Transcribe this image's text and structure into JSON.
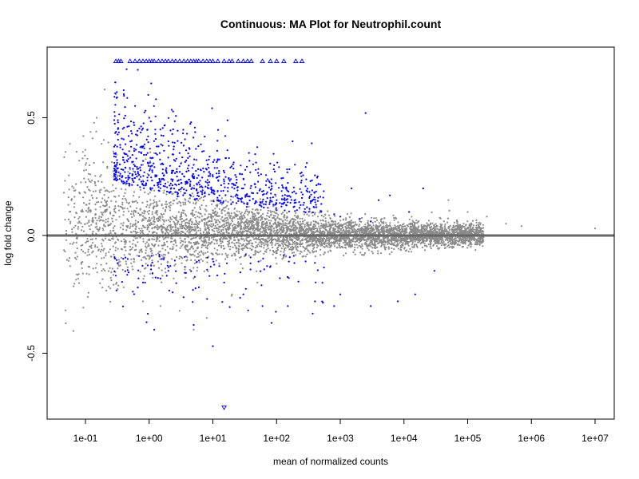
{
  "chart_data": {
    "type": "scatter",
    "title": "Continuous: MA Plot for Neutrophil.count",
    "xlabel": "mean of normalized counts",
    "ylabel": "log fold change",
    "x_scale": "log10",
    "x_ticks": [
      0.1,
      1,
      10,
      100,
      1000,
      10000,
      100000,
      1000000,
      10000000
    ],
    "x_tick_labels": [
      "1e-01",
      "1e+00",
      "1e+01",
      "1e+02",
      "1e+03",
      "1e+04",
      "1e+05",
      "1e+06",
      "1e+07"
    ],
    "y_ticks": [
      -0.5,
      0.0,
      0.5
    ],
    "y_tick_labels": [
      "-0.5",
      "0.0",
      "0.5"
    ],
    "xlim": [
      0.025,
      20000000
    ],
    "ylim": [
      -0.78,
      0.8
    ],
    "clip_ylim": [
      -0.73,
      0.73
    ],
    "reference_line": {
      "y": 0,
      "color": "#666666"
    },
    "grid": false,
    "legend": "none",
    "series": [
      {
        "color": "#8a8a8a",
        "marker": "point",
        "description_points": [
          [
            0.05,
            0.02
          ],
          [
            0.08,
            0.06
          ],
          [
            0.12,
            0.1
          ],
          [
            0.2,
            0.15
          ],
          [
            0.3,
            0.2
          ],
          [
            0.5,
            0.28
          ],
          [
            0.8,
            0.3
          ],
          [
            1.2,
            0.35
          ],
          [
            0.15,
            -0.12
          ],
          [
            0.25,
            -0.18
          ],
          [
            0.4,
            -0.22
          ],
          [
            0.8,
            -0.28
          ],
          [
            1.5,
            -0.3
          ],
          [
            3,
            -0.32
          ],
          [
            5,
            -0.4
          ],
          [
            8,
            -0.35
          ],
          [
            20,
            -0.25
          ],
          [
            50,
            -0.2
          ],
          [
            100,
            -0.12
          ],
          [
            300,
            -0.08
          ],
          [
            1000,
            -0.05
          ],
          [
            5000,
            -0.04
          ],
          [
            20000,
            -0.03
          ],
          [
            100000,
            -0.01
          ],
          [
            300000,
            0.0
          ],
          [
            1000000,
            0.0
          ],
          [
            2000000,
            0.0
          ],
          [
            10000000,
            0.03
          ],
          [
            0.06,
            0.15
          ],
          [
            0.1,
            0.3
          ],
          [
            0.12,
            0.44
          ],
          [
            0.2,
            0.62
          ],
          [
            0.3,
            0.6
          ],
          [
            0.15,
            0.5
          ],
          [
            0.05,
            -0.02
          ],
          [
            20000,
            0.2
          ],
          [
            50000,
            0.15
          ],
          [
            100000,
            0.1
          ],
          [
            200000,
            0.08
          ],
          [
            400000,
            0.05
          ],
          [
            700000,
            0.04
          ]
        ]
      },
      {
        "color": "#0000ff",
        "marker": "point",
        "description_points": [
          [
            0.4,
            0.6
          ],
          [
            0.6,
            0.55
          ],
          [
            1,
            0.5
          ],
          [
            1.5,
            0.45
          ],
          [
            2,
            0.4
          ],
          [
            3,
            0.35
          ],
          [
            5,
            0.3
          ],
          [
            8,
            0.28
          ],
          [
            10,
            0.25
          ],
          [
            15,
            0.23
          ],
          [
            20,
            0.22
          ],
          [
            30,
            0.2
          ],
          [
            50,
            0.18
          ],
          [
            80,
            0.16
          ],
          [
            100,
            0.15
          ],
          [
            200,
            0.14
          ],
          [
            300,
            0.12
          ],
          [
            500,
            0.1
          ],
          [
            800,
            0.09
          ],
          [
            1000,
            0.08
          ],
          [
            2000,
            0.07
          ],
          [
            3000,
            0.06
          ],
          [
            2500,
            0.52
          ],
          [
            1500,
            0.2
          ],
          [
            4000,
            0.15
          ],
          [
            6000,
            0.17
          ],
          [
            20000,
            0.2
          ],
          [
            12000,
            0.1
          ],
          [
            15,
            -0.2
          ],
          [
            30,
            -0.25
          ],
          [
            60,
            -0.3
          ],
          [
            150,
            -0.3
          ],
          [
            400,
            -0.28
          ],
          [
            800,
            -0.3
          ],
          [
            1000,
            -0.25
          ],
          [
            3000,
            -0.3
          ],
          [
            8000,
            -0.28
          ],
          [
            15000,
            -0.25
          ],
          [
            30000,
            -0.15
          ],
          [
            1.2,
            -0.4
          ],
          [
            5,
            -0.38
          ],
          [
            10,
            -0.47
          ],
          [
            0.8,
            -0.2
          ],
          [
            2,
            -0.15
          ],
          [
            10,
            -0.1
          ]
        ]
      },
      {
        "color": "#0000ff",
        "marker": "triangle-up",
        "x": [
          0.3,
          0.33,
          0.36,
          0.5,
          0.6,
          0.7,
          0.8,
          0.9,
          1.0,
          1.1,
          1.2,
          1.4,
          1.6,
          1.8,
          2.0,
          2.3,
          2.6,
          3.0,
          3.5,
          4,
          4.5,
          5,
          5.5,
          6,
          7,
          8,
          9,
          10,
          12,
          15,
          18,
          20,
          25,
          30,
          35,
          40,
          60,
          80,
          100,
          130,
          200,
          250
        ],
        "y": [
          0.74,
          0.74,
          0.74,
          0.74,
          0.74,
          0.74,
          0.74,
          0.74,
          0.74,
          0.74,
          0.74,
          0.74,
          0.74,
          0.74,
          0.74,
          0.74,
          0.74,
          0.74,
          0.74,
          0.74,
          0.74,
          0.74,
          0.74,
          0.74,
          0.74,
          0.74,
          0.74,
          0.74,
          0.74,
          0.74,
          0.74,
          0.74,
          0.74,
          0.74,
          0.74,
          0.74,
          0.74,
          0.74,
          0.74,
          0.74,
          0.74,
          0.74
        ]
      },
      {
        "color": "#0000ff",
        "marker": "triangle-down",
        "x": [
          15
        ],
        "y": [
          -0.73
        ]
      }
    ]
  }
}
